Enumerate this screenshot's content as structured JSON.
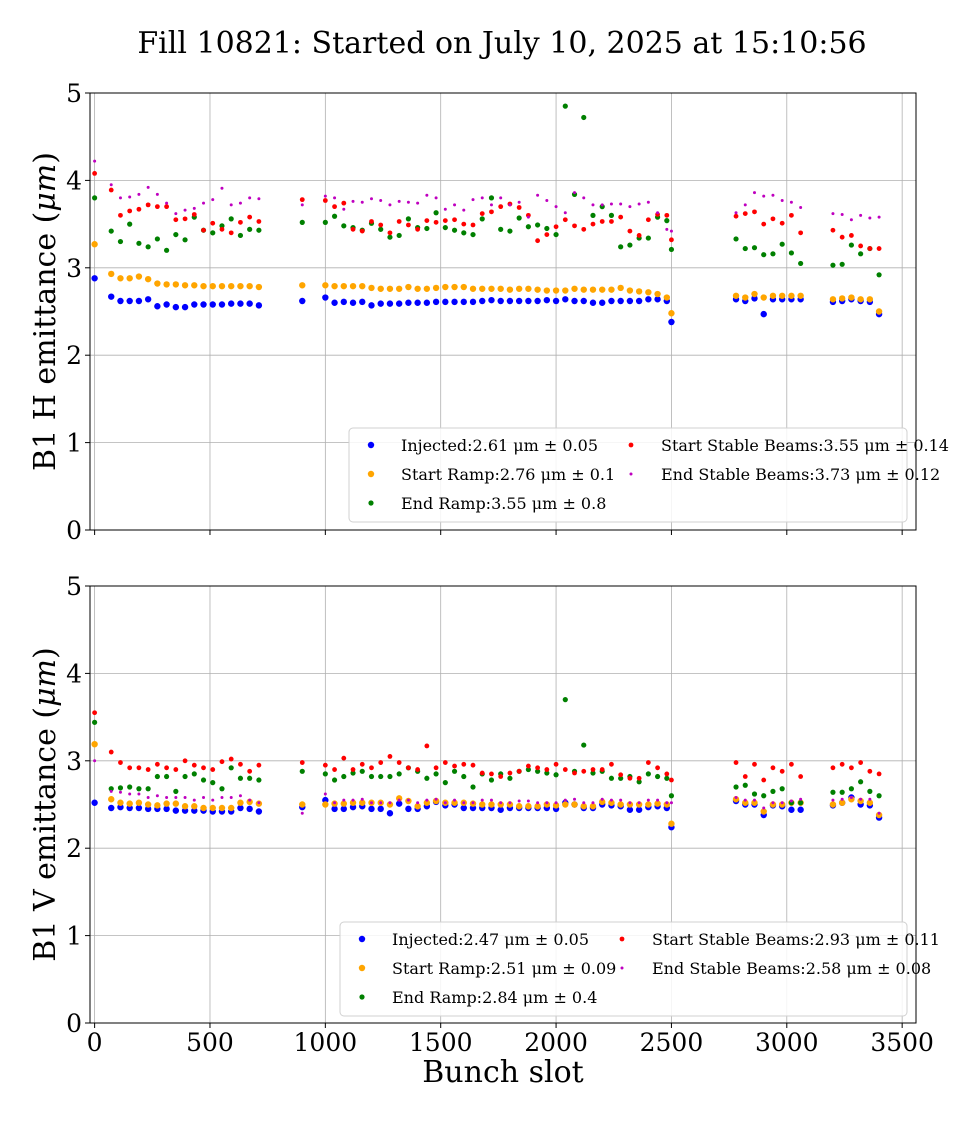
{
  "chart_data": {
    "title": "Fill 10821: Started on July 10, 2025 at 15:10:56",
    "xlabel": "Bunch slot",
    "type": "scatter",
    "xlim": [
      -20,
      3560
    ],
    "xticks": [
      0,
      500,
      1000,
      1500,
      2000,
      2500,
      3000,
      3500
    ],
    "x": [
      0,
      72,
      112,
      152,
      192,
      232,
      272,
      312,
      352,
      392,
      432,
      472,
      512,
      552,
      592,
      632,
      672,
      712,
      900,
      1000,
      1040,
      1080,
      1120,
      1160,
      1200,
      1240,
      1280,
      1320,
      1360,
      1400,
      1440,
      1480,
      1520,
      1560,
      1600,
      1640,
      1680,
      1720,
      1760,
      1800,
      1840,
      1880,
      1920,
      1960,
      2000,
      2040,
      2080,
      2120,
      2160,
      2200,
      2240,
      2280,
      2320,
      2360,
      2400,
      2440,
      2480,
      2500,
      2780,
      2820,
      2860,
      2900,
      2940,
      2980,
      3020,
      3060,
      3200,
      3240,
      3280,
      3320,
      3360,
      3400
    ],
    "panels": [
      {
        "name": "B1H",
        "ylabel": "B1 H emittance (",
        "ylabel_unit": "μm",
        "ylabel_close": ")",
        "ylim": [
          0,
          5
        ],
        "yticks": [
          0,
          1,
          2,
          3,
          4,
          5
        ],
        "series": [
          {
            "name": "Injected",
            "legend": "Injected:2.61 μm ± 0.05",
            "color": "#0000ff",
            "size": 3.2,
            "values": [
              2.88,
              2.67,
              2.62,
              2.62,
              2.62,
              2.64,
              2.56,
              2.58,
              2.55,
              2.55,
              2.58,
              2.58,
              2.58,
              2.58,
              2.59,
              2.59,
              2.59,
              2.57,
              2.62,
              2.66,
              2.6,
              2.61,
              2.6,
              2.61,
              2.57,
              2.59,
              2.59,
              2.59,
              2.6,
              2.6,
              2.6,
              2.61,
              2.61,
              2.61,
              2.61,
              2.61,
              2.62,
              2.63,
              2.62,
              2.62,
              2.62,
              2.62,
              2.62,
              2.63,
              2.62,
              2.64,
              2.62,
              2.62,
              2.6,
              2.6,
              2.62,
              2.62,
              2.62,
              2.62,
              2.64,
              2.64,
              2.62,
              2.38,
              2.64,
              2.62,
              2.65,
              2.47,
              2.64,
              2.64,
              2.64,
              2.64,
              2.61,
              2.62,
              2.64,
              2.62,
              2.61,
              2.47
            ]
          },
          {
            "name": "Start Ramp",
            "legend": "Start Ramp:2.76 μm ± 0.1",
            "color": "#ffa500",
            "size": 3.2,
            "values": [
              3.27,
              2.93,
              2.88,
              2.88,
              2.9,
              2.87,
              2.82,
              2.81,
              2.81,
              2.8,
              2.8,
              2.79,
              2.79,
              2.79,
              2.79,
              2.79,
              2.79,
              2.78,
              2.8,
              2.8,
              2.79,
              2.79,
              2.79,
              2.79,
              2.77,
              2.76,
              2.76,
              2.76,
              2.78,
              2.76,
              2.76,
              2.77,
              2.78,
              2.78,
              2.78,
              2.76,
              2.76,
              2.76,
              2.76,
              2.75,
              2.76,
              2.76,
              2.75,
              2.74,
              2.74,
              2.74,
              2.76,
              2.75,
              2.75,
              2.75,
              2.75,
              2.77,
              2.74,
              2.73,
              2.72,
              2.7,
              2.66,
              2.48,
              2.68,
              2.66,
              2.7,
              2.66,
              2.68,
              2.68,
              2.68,
              2.68,
              2.64,
              2.65,
              2.66,
              2.64,
              2.64,
              2.5
            ]
          },
          {
            "name": "End Ramp",
            "legend": "End Ramp:3.55 μm ± 0.8",
            "color": "#008000",
            "size": 2.6,
            "values": [
              3.8,
              3.42,
              3.3,
              3.5,
              3.28,
              3.24,
              3.33,
              3.2,
              3.38,
              3.32,
              3.58,
              3.43,
              3.4,
              3.48,
              3.56,
              3.37,
              3.44,
              3.43,
              3.52,
              3.52,
              3.59,
              3.48,
              3.46,
              3.43,
              3.51,
              3.44,
              3.35,
              3.37,
              3.56,
              3.46,
              3.45,
              3.63,
              3.46,
              3.43,
              3.4,
              3.38,
              3.56,
              3.8,
              3.44,
              3.42,
              3.57,
              3.47,
              3.49,
              3.45,
              3.38,
              4.85,
              3.84,
              4.72,
              3.6,
              3.7,
              3.6,
              3.24,
              3.26,
              3.34,
              3.34,
              3.58,
              3.54,
              3.21,
              3.33,
              3.22,
              3.23,
              3.15,
              3.16,
              3.27,
              3.17,
              3.05,
              3.03,
              3.04,
              3.26,
              3.16,
              3.22,
              2.92
            ]
          },
          {
            "name": "Start Stable Beams",
            "legend": "Start Stable Beams:3.55 μm ± 0.14",
            "color": "#ff0000",
            "size": 2.4,
            "values": [
              4.08,
              3.89,
              3.6,
              3.65,
              3.67,
              3.72,
              3.7,
              3.7,
              3.55,
              3.56,
              3.61,
              3.43,
              3.51,
              3.44,
              3.4,
              3.52,
              3.58,
              3.53,
              3.78,
              3.77,
              3.7,
              3.74,
              3.44,
              3.42,
              3.53,
              3.49,
              3.4,
              3.53,
              3.49,
              3.44,
              3.54,
              3.52,
              3.54,
              3.55,
              3.5,
              3.49,
              3.62,
              3.64,
              3.7,
              3.73,
              3.69,
              3.6,
              3.31,
              3.38,
              3.47,
              3.55,
              3.48,
              3.44,
              3.5,
              3.53,
              3.53,
              3.58,
              3.42,
              3.37,
              3.55,
              3.61,
              3.6,
              3.32,
              3.59,
              3.62,
              3.64,
              3.5,
              3.56,
              3.51,
              3.6,
              3.4,
              3.43,
              3.35,
              3.37,
              3.25,
              3.22,
              3.22
            ]
          },
          {
            "name": "End Stable Beams",
            "legend": "End Stable Beams:3.73 μm ± 0.12",
            "color": "#bf00bf",
            "size": 1.5,
            "values": [
              4.22,
              3.95,
              3.8,
              3.81,
              3.84,
              3.92,
              3.84,
              3.74,
              3.62,
              3.66,
              3.68,
              3.74,
              3.78,
              3.91,
              3.72,
              3.74,
              3.8,
              3.79,
              3.72,
              3.82,
              3.8,
              3.67,
              3.76,
              3.75,
              3.79,
              3.77,
              3.72,
              3.76,
              3.75,
              3.74,
              3.83,
              3.8,
              3.67,
              3.72,
              3.66,
              3.78,
              3.8,
              3.72,
              3.8,
              3.72,
              3.75,
              3.58,
              3.83,
              3.77,
              3.7,
              3.63,
              3.86,
              3.8,
              3.72,
              3.72,
              3.73,
              3.73,
              3.7,
              3.73,
              3.75,
              3.63,
              3.44,
              3.42,
              3.63,
              3.72,
              3.86,
              3.82,
              3.83,
              3.77,
              3.75,
              3.69,
              3.62,
              3.61,
              3.55,
              3.6,
              3.57,
              3.58
            ]
          }
        ]
      },
      {
        "name": "B1V",
        "ylabel": "B1 V emittance (",
        "ylabel_unit": "μm",
        "ylabel_close": ")",
        "xlabel": "Bunch slot",
        "ylim": [
          0,
          5
        ],
        "yticks": [
          0,
          1,
          2,
          3,
          4,
          5
        ],
        "series": [
          {
            "name": "Injected",
            "legend": "Injected:2.47 μm ± 0.05",
            "color": "#0000ff",
            "size": 3.2,
            "values": [
              2.52,
              2.46,
              2.47,
              2.46,
              2.46,
              2.45,
              2.45,
              2.45,
              2.43,
              2.43,
              2.43,
              2.43,
              2.42,
              2.42,
              2.42,
              2.46,
              2.45,
              2.42,
              2.47,
              2.55,
              2.45,
              2.45,
              2.47,
              2.48,
              2.45,
              2.45,
              2.4,
              2.51,
              2.45,
              2.45,
              2.48,
              2.53,
              2.49,
              2.5,
              2.46,
              2.46,
              2.46,
              2.46,
              2.44,
              2.46,
              2.46,
              2.46,
              2.46,
              2.46,
              2.45,
              2.52,
              2.5,
              2.46,
              2.46,
              2.5,
              2.49,
              2.48,
              2.44,
              2.44,
              2.47,
              2.48,
              2.46,
              2.24,
              2.54,
              2.5,
              2.5,
              2.38,
              2.49,
              2.48,
              2.44,
              2.44,
              2.49,
              2.52,
              2.58,
              2.5,
              2.49,
              2.35
            ]
          },
          {
            "name": "Start Ramp",
            "legend": "Start Ramp:2.51 μm ± 0.09",
            "color": "#ffa500",
            "size": 3.2,
            "values": [
              3.19,
              2.56,
              2.52,
              2.51,
              2.52,
              2.5,
              2.49,
              2.51,
              2.51,
              2.48,
              2.48,
              2.46,
              2.46,
              2.46,
              2.46,
              2.52,
              2.53,
              2.51,
              2.5,
              2.5,
              2.51,
              2.51,
              2.52,
              2.52,
              2.52,
              2.52,
              2.5,
              2.57,
              2.54,
              2.48,
              2.52,
              2.54,
              2.52,
              2.52,
              2.52,
              2.51,
              2.5,
              2.5,
              2.5,
              2.5,
              2.48,
              2.48,
              2.48,
              2.5,
              2.49,
              2.5,
              2.5,
              2.48,
              2.48,
              2.53,
              2.52,
              2.5,
              2.5,
              2.5,
              2.5,
              2.51,
              2.5,
              2.28,
              2.56,
              2.52,
              2.52,
              2.42,
              2.5,
              2.5,
              2.52,
              2.52,
              2.5,
              2.52,
              2.56,
              2.54,
              2.52,
              2.38
            ]
          },
          {
            "name": "End Ramp",
            "legend": "End Ramp:2.84 μm ± 0.4",
            "color": "#008000",
            "size": 2.6,
            "values": [
              3.44,
              2.68,
              2.69,
              2.7,
              2.68,
              2.68,
              2.82,
              2.82,
              2.65,
              2.82,
              2.85,
              2.78,
              2.75,
              2.68,
              2.92,
              2.8,
              2.8,
              2.78,
              2.88,
              2.85,
              2.78,
              2.82,
              2.86,
              2.88,
              2.82,
              2.82,
              2.82,
              2.85,
              2.92,
              2.88,
              2.8,
              2.85,
              2.75,
              2.88,
              2.82,
              2.7,
              2.85,
              2.78,
              2.85,
              2.8,
              2.88,
              2.9,
              2.88,
              2.86,
              2.84,
              3.7,
              2.88,
              3.18,
              2.86,
              2.88,
              2.8,
              2.8,
              2.82,
              2.76,
              2.85,
              2.82,
              2.8,
              2.6,
              2.7,
              2.72,
              2.62,
              2.6,
              2.65,
              2.68,
              2.52,
              2.52,
              2.64,
              2.64,
              2.68,
              2.76,
              2.65,
              2.6
            ]
          },
          {
            "name": "Start Stable Beams",
            "legend": "Start Stable Beams:2.93 μm ± 0.11",
            "color": "#ff0000",
            "size": 2.4,
            "values": [
              3.55,
              3.1,
              2.98,
              2.92,
              2.92,
              2.9,
              2.96,
              2.92,
              2.9,
              3.0,
              2.95,
              2.92,
              2.9,
              2.99,
              3.02,
              2.96,
              2.88,
              2.95,
              2.98,
              2.95,
              2.9,
              3.03,
              2.9,
              2.96,
              2.92,
              2.98,
              3.05,
              2.98,
              2.92,
              2.9,
              3.17,
              2.92,
              2.98,
              2.94,
              2.96,
              2.95,
              2.86,
              2.85,
              2.82,
              2.86,
              2.88,
              2.94,
              2.92,
              2.9,
              2.96,
              2.9,
              2.86,
              2.88,
              2.9,
              2.9,
              2.96,
              2.84,
              2.8,
              2.8,
              2.98,
              2.92,
              2.85,
              2.78,
              2.98,
              2.82,
              2.96,
              2.78,
              2.92,
              2.88,
              2.96,
              2.82,
              2.92,
              2.96,
              2.92,
              2.98,
              2.88,
              2.85
            ]
          },
          {
            "name": "End Stable Beams",
            "legend": "End Stable Beams:2.58 μm ± 0.08",
            "color": "#bf00bf",
            "size": 1.5,
            "values": [
              3.0,
              2.65,
              2.64,
              2.62,
              2.62,
              2.58,
              2.6,
              2.58,
              2.58,
              2.58,
              2.55,
              2.58,
              2.55,
              2.58,
              2.58,
              2.6,
              2.55,
              2.52,
              2.4,
              2.62,
              2.52,
              2.55,
              2.55,
              2.56,
              2.52,
              2.52,
              2.52,
              2.55,
              2.55,
              2.52,
              2.55,
              2.56,
              2.52,
              2.55,
              2.52,
              2.52,
              2.55,
              2.55,
              2.52,
              2.52,
              2.54,
              2.54,
              2.52,
              2.52,
              2.52,
              2.55,
              2.56,
              2.52,
              2.52,
              2.56,
              2.55,
              2.55,
              2.52,
              2.52,
              2.55,
              2.55,
              2.52,
              2.52,
              2.58,
              2.55,
              2.55,
              2.46,
              2.52,
              2.52,
              2.54,
              2.56,
              2.55,
              2.56,
              2.58,
              2.56,
              2.56,
              2.4
            ]
          }
        ]
      }
    ]
  }
}
